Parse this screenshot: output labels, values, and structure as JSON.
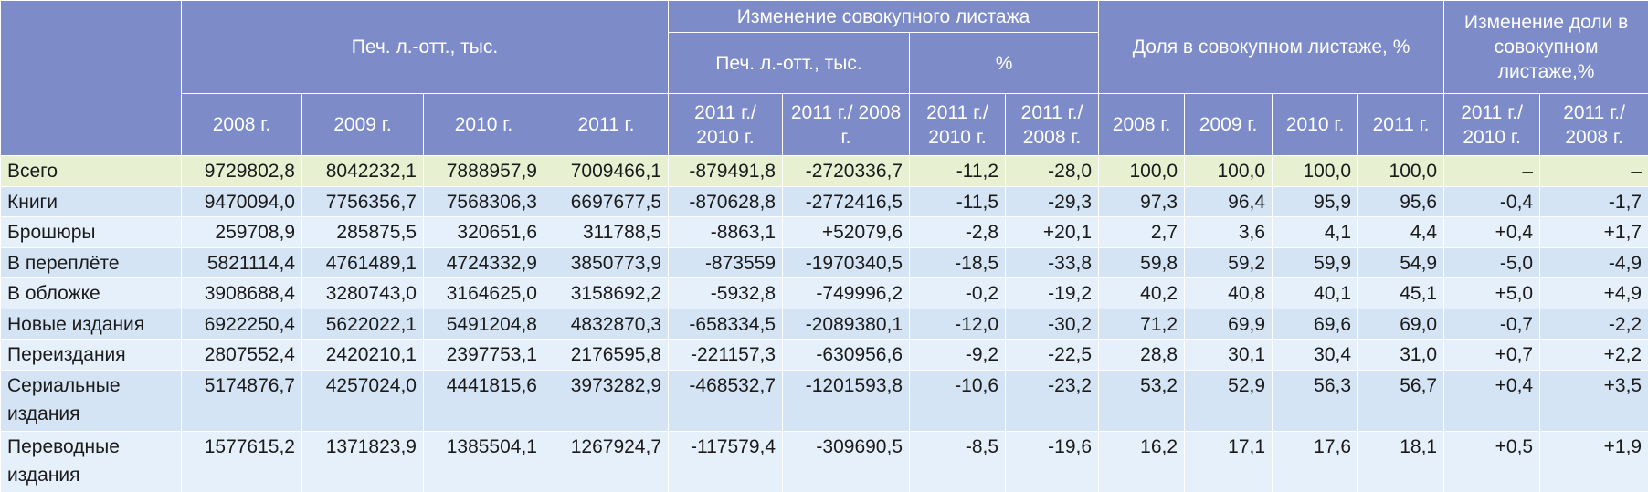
{
  "header": {
    "group_prints": "Печ. л.-отт., тыс.",
    "group_change": "Изменение совокупного листажа",
    "sub_change_prints": "Печ. л.-отт., тыс.",
    "sub_change_pct": "%",
    "group_share": "Доля в совокупном листаже, %",
    "group_share_change": "Изменение доли в совокупном листаже,%",
    "columns": [
      "2008 г.",
      "2009 г.",
      "2010 г.",
      "2011 г.",
      "2011 г./ 2010 г.",
      "2011 г./ 2008 г.",
      "2011 г./ 2010 г.",
      "2011 г./ 2008 г.",
      "2008 г.",
      "2009 г.",
      "2010 г.",
      "2011 г.",
      "2011 г./ 2010 г.",
      "2011 г./ 2008 г."
    ]
  },
  "table": {
    "rows": [
      [
        "Всего",
        "9729802,8",
        "8042232,1",
        "7888957,9",
        "7009466,1",
        "-879491,8",
        "-2720336,7",
        "-11,2",
        "-28,0",
        "100,0",
        "100,0",
        "100,0",
        "100,0",
        "–",
        "–"
      ],
      [
        "Книги",
        "9470094,0",
        "7756356,7",
        "7568306,3",
        "6697677,5",
        "-870628,8",
        "-2772416,5",
        "-11,5",
        "-29,3",
        "97,3",
        "96,4",
        "95,9",
        "95,6",
        "-0,4",
        "-1,7"
      ],
      [
        "Брошюры",
        "259708,9",
        "285875,5",
        "320651,6",
        "311788,5",
        "-8863,1",
        "+52079,6",
        "-2,8",
        "+20,1",
        "2,7",
        "3,6",
        "4,1",
        "4,4",
        "+0,4",
        "+1,7"
      ],
      [
        "В переплёте",
        "5821114,4",
        "4761489,1",
        "4724332,9",
        "3850773,9",
        "-873559",
        "-1970340,5",
        "-18,5",
        "-33,8",
        "59,8",
        "59,2",
        "59,9",
        "54,9",
        "-5,0",
        "-4,9"
      ],
      [
        "В обложке",
        "3908688,4",
        "3280743,0",
        "3164625,0",
        "3158692,2",
        "-5932,8",
        "-749996,2",
        "-0,2",
        "-19,2",
        "40,2",
        "40,8",
        "40,1",
        "45,1",
        "+5,0",
        "+4,9"
      ],
      [
        "Новые издания",
        "6922250,4",
        "5622022,1",
        "5491204,8",
        "4832870,3",
        "-658334,5",
        "-2089380,1",
        "-12,0",
        "-30,2",
        "71,2",
        "69,9",
        "69,6",
        "69,0",
        "-0,7",
        "-2,2"
      ],
      [
        "Переиздания",
        "2807552,4",
        "2420210,1",
        "2397753,1",
        "2176595,8",
        "-221157,3",
        "-630956,6",
        "-9,2",
        "-22,5",
        "28,8",
        "30,1",
        "30,4",
        "31,0",
        "+0,7",
        "+2,2"
      ],
      [
        "Сериальные издания",
        "5174876,7",
        "4257024,0",
        "4441815,6",
        "3973282,9",
        "-468532,7",
        "-1201593,8",
        "-10,6",
        "-23,2",
        "53,2",
        "52,9",
        "56,3",
        "56,7",
        "+0,4",
        "+3,5"
      ],
      [
        "Переводные издания",
        "1577615,2",
        "1371823,9",
        "1385504,1",
        "1267924,7",
        "-117579,4",
        "-309690,5",
        "-8,5",
        "-19,6",
        "16,2",
        "17,1",
        "17,6",
        "18,1",
        "+0,5",
        "+1,9"
      ]
    ]
  }
}
